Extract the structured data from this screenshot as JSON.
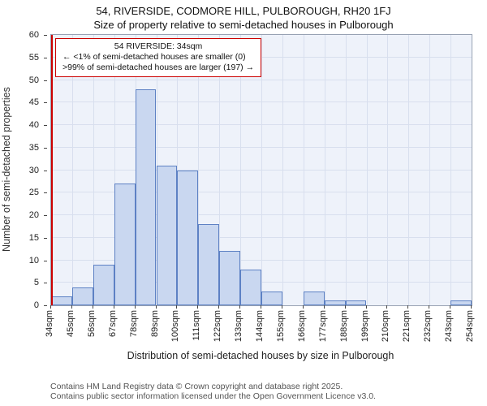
{
  "title": "54, RIVERSIDE, CODMORE HILL, PULBOROUGH, RH20 1FJ",
  "subtitle": "Size of property relative to semi-detached houses in Pulborough",
  "annotation": {
    "line1": "54 RIVERSIDE: 34sqm",
    "line2": "← <1% of semi-detached houses are smaller (0)",
    "line3": ">99% of semi-detached houses are larger (197) →"
  },
  "footer": {
    "line1": "Contains HM Land Registry data © Crown copyright and database right 2025.",
    "line2": "Contains public sector information licensed under the Open Government Licence v3.0."
  },
  "chart_data": {
    "type": "bar",
    "title": "54, RIVERSIDE, CODMORE HILL, PULBOROUGH, RH20 1FJ",
    "subtitle": "Size of property relative to semi-detached houses in Pulborough",
    "xlabel": "Distribution of semi-detached houses by size in Pulborough",
    "ylabel": "Number of semi-detached properties",
    "bin_edges": [
      34,
      45,
      56,
      67,
      78,
      89,
      100,
      111,
      122,
      133,
      144,
      155,
      166,
      177,
      188,
      199,
      210,
      221,
      232,
      243,
      254
    ],
    "bin_labels": [
      "34sqm",
      "45sqm",
      "56sqm",
      "67sqm",
      "78sqm",
      "89sqm",
      "100sqm",
      "111sqm",
      "122sqm",
      "133sqm",
      "144sqm",
      "155sqm",
      "166sqm",
      "177sqm",
      "188sqm",
      "199sqm",
      "210sqm",
      "221sqm",
      "232sqm",
      "243sqm",
      "254sqm"
    ],
    "values": [
      2,
      4,
      9,
      27,
      48,
      31,
      30,
      18,
      12,
      8,
      3,
      0,
      3,
      1,
      1,
      0,
      0,
      0,
      0,
      1
    ],
    "ylim": [
      0,
      60
    ],
    "yticks": [
      0,
      5,
      10,
      15,
      20,
      25,
      30,
      35,
      40,
      45,
      50,
      55,
      60
    ],
    "grid": true,
    "legend": false,
    "marker_value": 34,
    "colors": {
      "bar_fill": "#c9d7f0",
      "bar_border": "#5d81c4",
      "marker_line": "#cc0000",
      "annotation_border": "#cc0000",
      "plot_bg": "#eef2fa",
      "grid_line": "#d8dfee"
    }
  }
}
